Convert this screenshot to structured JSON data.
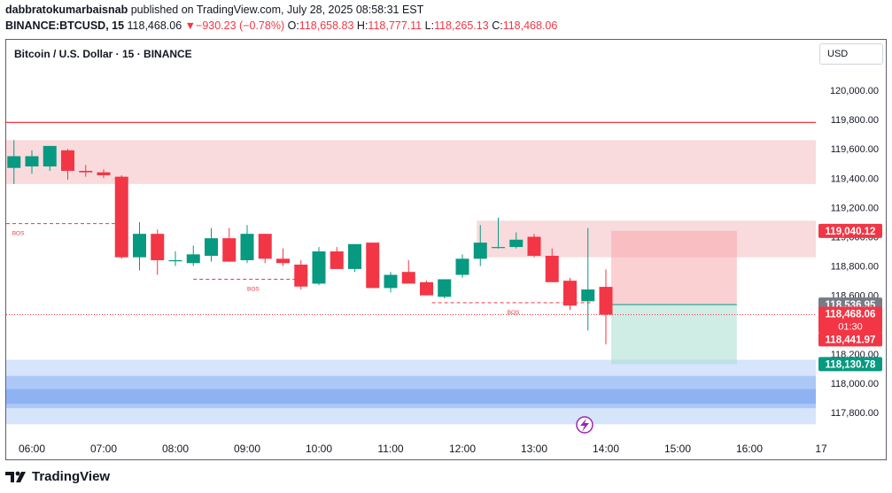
{
  "header": {
    "author": "dabbratokumarbaisnab",
    "published_text": "published on TradingView.com, July 28, 2025 08:58:31 EST",
    "symbol": "BINANCE:BTCUSD, 15",
    "last": "118,468.06",
    "change_arrow": "▼",
    "change": "−930.23 (−0.78%)",
    "o_label": "O:",
    "o_value": "118,658.83",
    "h_label": "H:",
    "h_value": "118,777.11",
    "l_label": "L:",
    "l_value": "118,265.13",
    "c_label": "C:",
    "c_value": "118,468.06"
  },
  "chart_title": "Bitcoin / U.S. Dollar · 15 · BINANCE",
  "currency_button": "USD",
  "footer": {
    "brand": "TradingView"
  },
  "colors": {
    "up": "#089981",
    "down": "#f23645",
    "supply": "#f7cfd2",
    "demand": "#bbd3fb"
  },
  "chart_data": {
    "type": "candlestick",
    "ylim": [
      117700,
      120200
    ],
    "y_ticks": [
      120000,
      119800,
      119600,
      119400,
      119200,
      119000,
      118800,
      118600,
      118400,
      118200,
      118000,
      117800
    ],
    "y_tick_labels": [
      "120,000.00",
      "119,800.00",
      "119,600.00",
      "119,400.00",
      "119,200.00",
      "119,000.00",
      "118,800.00",
      "118,600.00",
      "118,400.00",
      "118,200.00",
      "118,000.00",
      "117,800.00"
    ],
    "x_ticks": [
      {
        "label": "06:00",
        "t": 0
      },
      {
        "label": "07:00",
        "t": 4
      },
      {
        "label": "08:00",
        "t": 8
      },
      {
        "label": "09:00",
        "t": 12
      },
      {
        "label": "10:00",
        "t": 16
      },
      {
        "label": "11:00",
        "t": 20
      },
      {
        "label": "12:00",
        "t": 24
      },
      {
        "label": "13:00",
        "t": 28
      },
      {
        "label": "14:00",
        "t": 32
      },
      {
        "label": "15:00",
        "t": 36
      },
      {
        "label": "16:00",
        "t": 40
      },
      {
        "label": "17",
        "t": 44
      }
    ],
    "candles": [
      {
        "t": -1,
        "o": 119470,
        "h": 119660,
        "l": 119360,
        "c": 119550
      },
      {
        "t": 0,
        "o": 119480,
        "h": 119590,
        "l": 119430,
        "c": 119550
      },
      {
        "t": 1,
        "o": 119480,
        "h": 119620,
        "l": 119450,
        "c": 119620
      },
      {
        "t": 2,
        "o": 119590,
        "h": 119600,
        "l": 119390,
        "c": 119450
      },
      {
        "t": 3,
        "o": 119450,
        "h": 119490,
        "l": 119410,
        "c": 119440
      },
      {
        "t": 4,
        "o": 119440,
        "h": 119460,
        "l": 119400,
        "c": 119420
      },
      {
        "t": 5,
        "o": 119410,
        "h": 119420,
        "l": 118850,
        "c": 118860
      },
      {
        "t": 6,
        "o": 118860,
        "h": 119100,
        "l": 118770,
        "c": 119020
      },
      {
        "t": 7,
        "o": 119020,
        "h": 119050,
        "l": 118740,
        "c": 118840
      },
      {
        "t": 8,
        "o": 118840,
        "h": 118900,
        "l": 118800,
        "c": 118840
      },
      {
        "t": 9,
        "o": 118820,
        "h": 118940,
        "l": 118800,
        "c": 118880
      },
      {
        "t": 10,
        "o": 118870,
        "h": 119060,
        "l": 118830,
        "c": 118990
      },
      {
        "t": 11,
        "o": 118990,
        "h": 119060,
        "l": 118830,
        "c": 118830
      },
      {
        "t": 12,
        "o": 118840,
        "h": 119080,
        "l": 118820,
        "c": 119020
      },
      {
        "t": 13,
        "o": 119020,
        "h": 119020,
        "l": 118820,
        "c": 118850
      },
      {
        "t": 14,
        "o": 118850,
        "h": 118920,
        "l": 118800,
        "c": 118820
      },
      {
        "t": 15,
        "o": 118810,
        "h": 118840,
        "l": 118640,
        "c": 118660
      },
      {
        "t": 16,
        "o": 118680,
        "h": 118930,
        "l": 118670,
        "c": 118900
      },
      {
        "t": 17,
        "o": 118900,
        "h": 118930,
        "l": 118780,
        "c": 118780
      },
      {
        "t": 18,
        "o": 118780,
        "h": 118950,
        "l": 118760,
        "c": 118950
      },
      {
        "t": 19,
        "o": 118960,
        "h": 118960,
        "l": 118650,
        "c": 118650
      },
      {
        "t": 20,
        "o": 118650,
        "h": 118760,
        "l": 118620,
        "c": 118740
      },
      {
        "t": 21,
        "o": 118760,
        "h": 118840,
        "l": 118680,
        "c": 118680
      },
      {
        "t": 22,
        "o": 118690,
        "h": 118700,
        "l": 118600,
        "c": 118600
      },
      {
        "t": 23,
        "o": 118590,
        "h": 118710,
        "l": 118580,
        "c": 118710
      },
      {
        "t": 24,
        "o": 118740,
        "h": 118880,
        "l": 118720,
        "c": 118850
      },
      {
        "t": 25,
        "o": 118850,
        "h": 119080,
        "l": 118800,
        "c": 118960
      },
      {
        "t": 26,
        "o": 118930,
        "h": 119130,
        "l": 118920,
        "c": 118930
      },
      {
        "t": 27,
        "o": 118930,
        "h": 119030,
        "l": 118920,
        "c": 118980
      },
      {
        "t": 28,
        "o": 119000,
        "h": 119020,
        "l": 118860,
        "c": 118870
      },
      {
        "t": 29,
        "o": 118870,
        "h": 118920,
        "l": 118690,
        "c": 118690
      },
      {
        "t": 30,
        "o": 118700,
        "h": 118720,
        "l": 118500,
        "c": 118530
      },
      {
        "t": 31,
        "o": 118560,
        "h": 119060,
        "l": 118360,
        "c": 118640
      },
      {
        "t": 32,
        "o": 118658,
        "h": 118777,
        "l": 118265,
        "c": 118468
      }
    ],
    "hline": 119780,
    "current_price": 118468.06,
    "bos": [
      {
        "label": "BOS",
        "price": 119090,
        "t0": -1.5,
        "t1": 5.2,
        "label_t": -1.1
      },
      {
        "label": "BOS",
        "price": 118710,
        "t0": 9,
        "t1": 15.3,
        "label_t": 12
      },
      {
        "label": "BOS",
        "price": 118550,
        "t0": 22.3,
        "t1": 31.3,
        "label_t": 26.5
      }
    ],
    "zones": [
      {
        "kind": "supply",
        "y1": 119660,
        "y2": 119360,
        "t0": -1.5,
        "t1": 47
      },
      {
        "kind": "supply",
        "y1": 119110,
        "y2": 118860,
        "t0": 24.8,
        "t1": 47
      },
      {
        "kind": "demand",
        "y1": 118160,
        "y2": 117720,
        "t0": -1.5,
        "t1": 47
      }
    ],
    "position": {
      "entry": 118537,
      "stop": 119040,
      "target": 118131,
      "t0": 32.3,
      "t1": 39.3
    },
    "price_labels": [
      {
        "text": "119,040.12",
        "price": 119040,
        "bg": "#f23645",
        "fg": "#ffffff"
      },
      {
        "text": "118,536.95",
        "price": 118537,
        "bg": "#787b86",
        "fg": "#ffffff"
      },
      {
        "text": "118,468.06",
        "price": 118468,
        "bg": "#f23645",
        "fg": "#ffffff",
        "sub": "01:30"
      },
      {
        "text": "118,441.97",
        "price": 118300,
        "bg": "#f23645",
        "fg": "#ffffff"
      },
      {
        "text": "118,130.78",
        "price": 118131,
        "bg": "#089981",
        "fg": "#ffffff"
      }
    ]
  }
}
